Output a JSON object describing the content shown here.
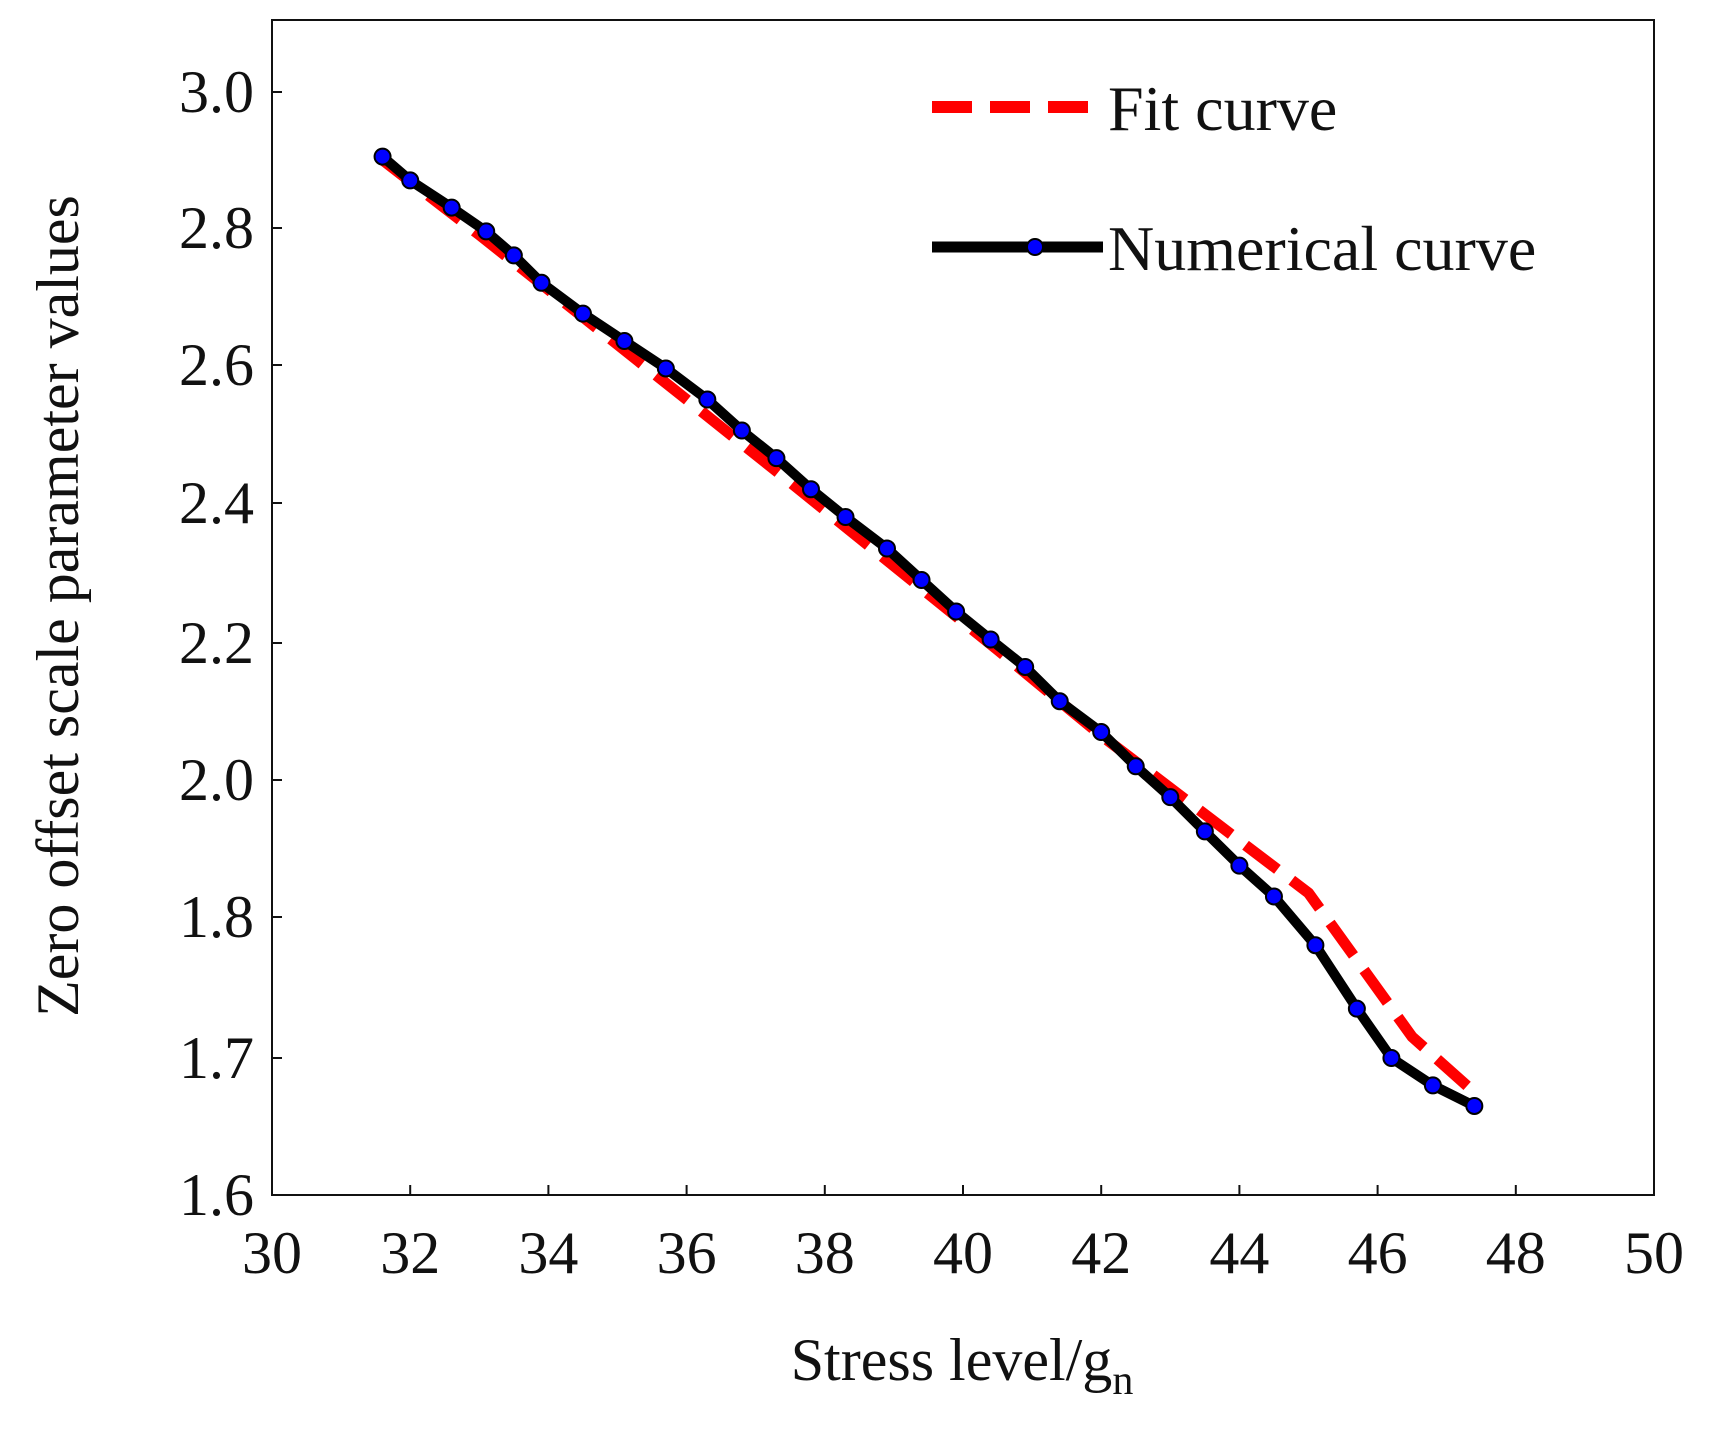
{
  "chart_data": {
    "type": "line",
    "title": "",
    "xlabel": "Stress level/g",
    "xlabel_subscript": "n",
    "ylabel": "Zero offset scale parameter values",
    "xlim": [
      30,
      50
    ],
    "ylim": [
      1.6,
      3.1
    ],
    "y_scale": "piecewise: 0.2 spacing from 1.6 to 3.0 with extra 1.7 tick",
    "x_ticks": [
      "30",
      "32",
      "34",
      "36",
      "38",
      "40",
      "42",
      "44",
      "46",
      "48",
      "50"
    ],
    "y_ticks": [
      "1.6",
      "1.7",
      "1.8",
      "2.0",
      "2.2",
      "2.4",
      "2.6",
      "2.8",
      "3.0"
    ],
    "grid": false,
    "legend_position": "top-right",
    "series": [
      {
        "name": "Fit curve",
        "color": "#ff0000",
        "style": "dashed",
        "x": [
          31.6,
          33.0,
          34.5,
          36.0,
          37.5,
          39.0,
          40.5,
          42.0,
          43.5,
          45.0,
          46.5,
          47.4
        ],
        "y": [
          2.9,
          2.79,
          2.67,
          2.55,
          2.43,
          2.31,
          2.19,
          2.065,
          1.95,
          1.835,
          1.715,
          1.675
        ]
      },
      {
        "name": "Numerical curve",
        "color": "#000000",
        "marker_color": "#0000ff",
        "style": "solid",
        "x": [
          31.6,
          32.0,
          32.6,
          33.1,
          33.5,
          33.9,
          34.5,
          35.1,
          35.7,
          36.3,
          36.8,
          37.3,
          37.8,
          38.3,
          38.9,
          39.4,
          39.9,
          40.4,
          40.9,
          41.4,
          42.0,
          42.5,
          43.0,
          43.5,
          44.0,
          44.5,
          45.1,
          45.7,
          46.2,
          46.8,
          47.4
        ],
        "y": [
          2.905,
          2.87,
          2.83,
          2.795,
          2.76,
          2.72,
          2.675,
          2.635,
          2.595,
          2.55,
          2.505,
          2.465,
          2.42,
          2.38,
          2.335,
          2.29,
          2.245,
          2.205,
          2.165,
          2.115,
          2.07,
          2.02,
          1.975,
          1.925,
          1.875,
          1.83,
          1.78,
          1.735,
          1.7,
          1.68,
          1.665
        ]
      }
    ]
  }
}
